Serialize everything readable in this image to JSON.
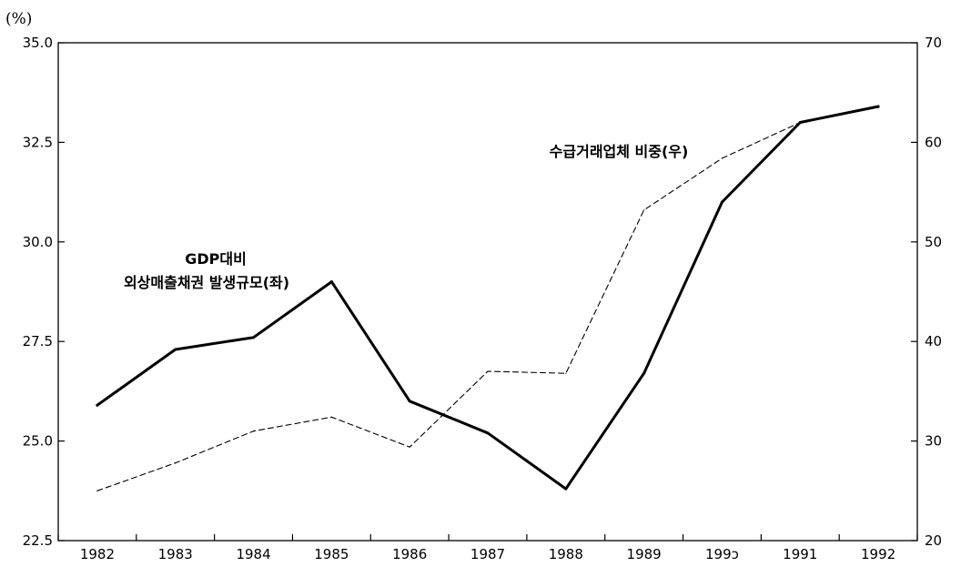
{
  "chart_data": {
    "type": "line",
    "categories": [
      "1982",
      "1983",
      "1984",
      "1985",
      "1986",
      "1987",
      "1988",
      "1989",
      "199ɔ",
      "1991",
      "1992"
    ],
    "unit_label": "(%)",
    "y_left": {
      "range": [
        22.5,
        35.0
      ],
      "ticks": [
        "22.5",
        "25.0",
        "27.5",
        "30.0",
        "32.5",
        "35.0"
      ]
    },
    "y_right": {
      "range": [
        20,
        70
      ],
      "ticks": [
        "20",
        "30",
        "40",
        "50",
        "60",
        "70"
      ]
    },
    "series": [
      {
        "axis": "left",
        "style": "solid",
        "values": [
          25.9,
          27.3,
          27.6,
          29.0,
          26.0,
          25.2,
          23.8,
          26.7,
          31.0,
          33.0,
          33.4
        ]
      },
      {
        "axis": "right",
        "style": "dashed",
        "values": [
          25.0,
          27.8,
          31.0,
          32.4,
          29.4,
          37.0,
          36.8,
          53.2,
          58.4,
          62.0,
          63.5
        ]
      }
    ],
    "annotations": [
      {
        "id": "left-series",
        "lines": [
          "GDP대비",
          "외상매출채권 발생규모(좌)"
        ]
      },
      {
        "id": "right-series",
        "lines": [
          "수급거래업체 비중(우)"
        ]
      }
    ],
    "grid": false,
    "legend": "none"
  },
  "colors": {
    "line": "#000000",
    "axis": "#000000",
    "background": "#ffffff"
  }
}
